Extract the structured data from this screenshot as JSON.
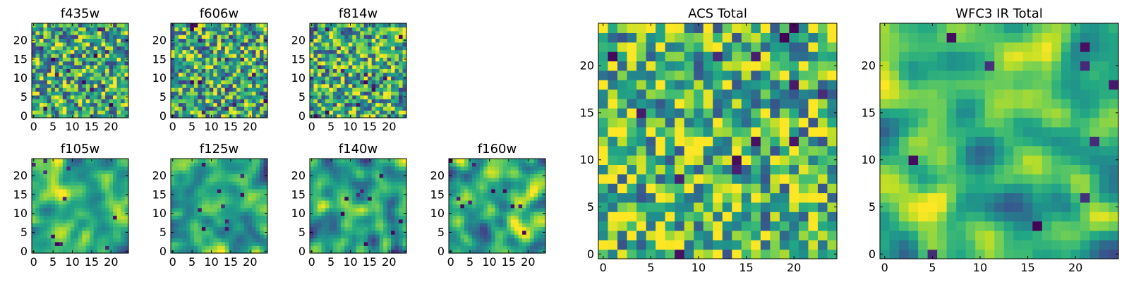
{
  "chart_data": [
    {
      "type": "heatmap",
      "title": "f435w",
      "grid_size": 25,
      "x_ticks": [
        "0",
        "5",
        "10",
        "15",
        "20"
      ],
      "y_ticks": [
        "0",
        "5",
        "10",
        "15",
        "20"
      ],
      "xlim": [
        -0.5,
        24.5
      ],
      "ylim": [
        -0.5,
        24.5
      ],
      "colormap": "viridis",
      "texture": "speckled",
      "bias": 0.62,
      "seed": 11
    },
    {
      "type": "heatmap",
      "title": "f606w",
      "grid_size": 25,
      "x_ticks": [
        "0",
        "5",
        "10",
        "15",
        "20"
      ],
      "y_ticks": [
        "0",
        "5",
        "10",
        "15",
        "20"
      ],
      "xlim": [
        -0.5,
        24.5
      ],
      "ylim": [
        -0.5,
        24.5
      ],
      "colormap": "viridis",
      "texture": "speckled",
      "bias": 0.6,
      "seed": 23
    },
    {
      "type": "heatmap",
      "title": "f814w",
      "grid_size": 25,
      "x_ticks": [
        "0",
        "5",
        "10",
        "15",
        "20"
      ],
      "y_ticks": [
        "0",
        "5",
        "10",
        "15",
        "20"
      ],
      "xlim": [
        -0.5,
        24.5
      ],
      "ylim": [
        -0.5,
        24.5
      ],
      "colormap": "viridis",
      "texture": "speckled",
      "bias": 0.62,
      "seed": 37
    },
    {
      "type": "heatmap",
      "title": "f105w",
      "grid_size": 25,
      "x_ticks": [
        "0",
        "5",
        "10",
        "15",
        "20"
      ],
      "y_ticks": [
        "0",
        "5",
        "10",
        "15",
        "20"
      ],
      "xlim": [
        -0.5,
        24.5
      ],
      "ylim": [
        -0.5,
        24.5
      ],
      "colormap": "viridis",
      "texture": "smooth",
      "bias": 0.62,
      "seed": 41
    },
    {
      "type": "heatmap",
      "title": "f125w",
      "grid_size": 25,
      "x_ticks": [
        "0",
        "5",
        "10",
        "15",
        "20"
      ],
      "y_ticks": [
        "0",
        "5",
        "10",
        "15",
        "20"
      ],
      "xlim": [
        -0.5,
        24.5
      ],
      "ylim": [
        -0.5,
        24.5
      ],
      "colormap": "viridis",
      "texture": "smooth",
      "bias": 0.58,
      "seed": 53
    },
    {
      "type": "heatmap",
      "title": "f140w",
      "grid_size": 25,
      "x_ticks": [
        "0",
        "5",
        "10",
        "15",
        "20"
      ],
      "y_ticks": [
        "0",
        "5",
        "10",
        "15",
        "20"
      ],
      "xlim": [
        -0.5,
        24.5
      ],
      "ylim": [
        -0.5,
        24.5
      ],
      "colormap": "viridis",
      "texture": "smooth",
      "bias": 0.57,
      "seed": 67
    },
    {
      "type": "heatmap",
      "title": "f160w",
      "grid_size": 25,
      "x_ticks": [
        "0",
        "5",
        "10",
        "15",
        "20"
      ],
      "y_ticks": [
        "0",
        "5",
        "10",
        "15",
        "20"
      ],
      "xlim": [
        -0.5,
        24.5
      ],
      "ylim": [
        -0.5,
        24.5
      ],
      "colormap": "viridis",
      "texture": "smooth",
      "bias": 0.62,
      "seed": 79
    },
    {
      "type": "heatmap",
      "title": "ACS Total",
      "grid_size": 25,
      "x_ticks": [
        "0",
        "5",
        "10",
        "15",
        "20"
      ],
      "y_ticks": [
        "0",
        "5",
        "10",
        "15",
        "20"
      ],
      "xlim": [
        -0.5,
        24.5
      ],
      "ylim": [
        -0.5,
        24.5
      ],
      "colormap": "viridis",
      "texture": "speckled",
      "bias": 0.68,
      "seed": 97
    },
    {
      "type": "heatmap",
      "title": "WFC3 IR Total",
      "grid_size": 25,
      "x_ticks": [
        "0",
        "5",
        "10",
        "15",
        "20"
      ],
      "y_ticks": [
        "0",
        "5",
        "10",
        "15",
        "20"
      ],
      "xlim": [
        -0.5,
        24.5
      ],
      "ylim": [
        -0.5,
        24.5
      ],
      "colormap": "viridis",
      "texture": "smooth",
      "bias": 0.66,
      "seed": 131
    }
  ]
}
